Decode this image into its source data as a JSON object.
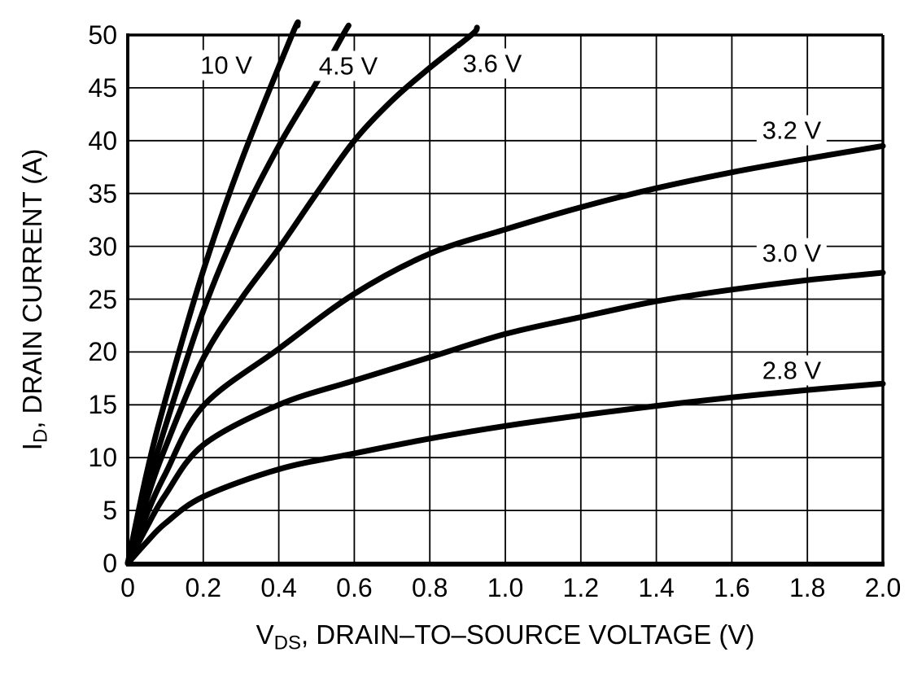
{
  "chart_data": {
    "type": "line",
    "title": "",
    "xlabel": {
      "var": "V",
      "sub": "DS",
      "rest": ", DRAIN–TO–SOURCE VOLTAGE (V)"
    },
    "ylabel": {
      "var": "I",
      "sub": "D",
      "rest": ", DRAIN CURRENT (A)"
    },
    "xlim": [
      0,
      2.0
    ],
    "ylim": [
      0,
      50
    ],
    "grid": true,
    "x_ticks": [
      "0",
      "0.2",
      "0.4",
      "0.6",
      "0.8",
      "1.0",
      "1.2",
      "1.4",
      "1.6",
      "1.8",
      "2.0"
    ],
    "y_ticks": [
      "0",
      "5",
      "10",
      "15",
      "20",
      "25",
      "30",
      "35",
      "40",
      "45",
      "50"
    ],
    "colors": {
      "line": "#000000",
      "grid": "#000000",
      "background": "#ffffff"
    },
    "series": [
      {
        "name": "vgs-10v",
        "label": "10 V",
        "gate_voltage_v": 10,
        "points": [
          [
            0,
            0
          ],
          [
            0.05,
            8.5
          ],
          [
            0.1,
            15.5
          ],
          [
            0.2,
            27.7
          ],
          [
            0.3,
            38
          ],
          [
            0.435,
            50
          ],
          [
            0.45,
            50.9
          ]
        ]
      },
      {
        "name": "vgs-4.5v",
        "label": "4.5 V",
        "gate_voltage_v": 4.5,
        "points": [
          [
            0,
            0
          ],
          [
            0.05,
            7
          ],
          [
            0.1,
            13
          ],
          [
            0.2,
            23.9
          ],
          [
            0.3,
            32.5
          ],
          [
            0.4,
            39.5
          ],
          [
            0.5,
            45.5
          ],
          [
            0.57,
            50
          ],
          [
            0.585,
            50.9
          ]
        ]
      },
      {
        "name": "vgs-3.6v",
        "label": "3.6 V",
        "gate_voltage_v": 3.6,
        "points": [
          [
            0,
            0
          ],
          [
            0.05,
            6
          ],
          [
            0.1,
            11
          ],
          [
            0.2,
            19.4
          ],
          [
            0.3,
            25
          ],
          [
            0.4,
            29.8
          ],
          [
            0.5,
            35
          ],
          [
            0.6,
            40
          ],
          [
            0.7,
            43.8
          ],
          [
            0.8,
            46.9
          ],
          [
            0.91,
            50
          ],
          [
            0.925,
            50.7
          ]
        ]
      },
      {
        "name": "vgs-3.2v",
        "label": "3.2 V",
        "gate_voltage_v": 3.2,
        "points": [
          [
            0,
            0
          ],
          [
            0.05,
            4.6
          ],
          [
            0.1,
            8.5
          ],
          [
            0.2,
            14.9
          ],
          [
            0.4,
            20.3
          ],
          [
            0.6,
            25.5
          ],
          [
            0.8,
            29.3
          ],
          [
            1.0,
            31.6
          ],
          [
            1.2,
            33.7
          ],
          [
            1.4,
            35.5
          ],
          [
            1.6,
            37.0
          ],
          [
            1.8,
            38.3
          ],
          [
            2.0,
            39.5
          ]
        ]
      },
      {
        "name": "vgs-3.0v",
        "label": "3.0 V",
        "gate_voltage_v": 3.0,
        "points": [
          [
            0,
            0
          ],
          [
            0.05,
            3.4
          ],
          [
            0.1,
            6.5
          ],
          [
            0.2,
            11.2
          ],
          [
            0.4,
            15.0
          ],
          [
            0.6,
            17.3
          ],
          [
            0.8,
            19.5
          ],
          [
            1.0,
            21.7
          ],
          [
            1.2,
            23.3
          ],
          [
            1.4,
            24.8
          ],
          [
            1.6,
            25.9
          ],
          [
            1.8,
            26.8
          ],
          [
            2.0,
            27.5
          ]
        ]
      },
      {
        "name": "vgs-2.8v",
        "label": "2.8 V",
        "gate_voltage_v": 2.8,
        "points": [
          [
            0,
            0
          ],
          [
            0.05,
            2.0
          ],
          [
            0.1,
            3.8
          ],
          [
            0.2,
            6.3
          ],
          [
            0.4,
            8.9
          ],
          [
            0.6,
            10.4
          ],
          [
            0.8,
            11.8
          ],
          [
            1.0,
            13.0
          ],
          [
            1.2,
            14.0
          ],
          [
            1.4,
            14.9
          ],
          [
            1.6,
            15.7
          ],
          [
            1.8,
            16.4
          ],
          [
            2.0,
            17.0
          ]
        ]
      }
    ]
  }
}
